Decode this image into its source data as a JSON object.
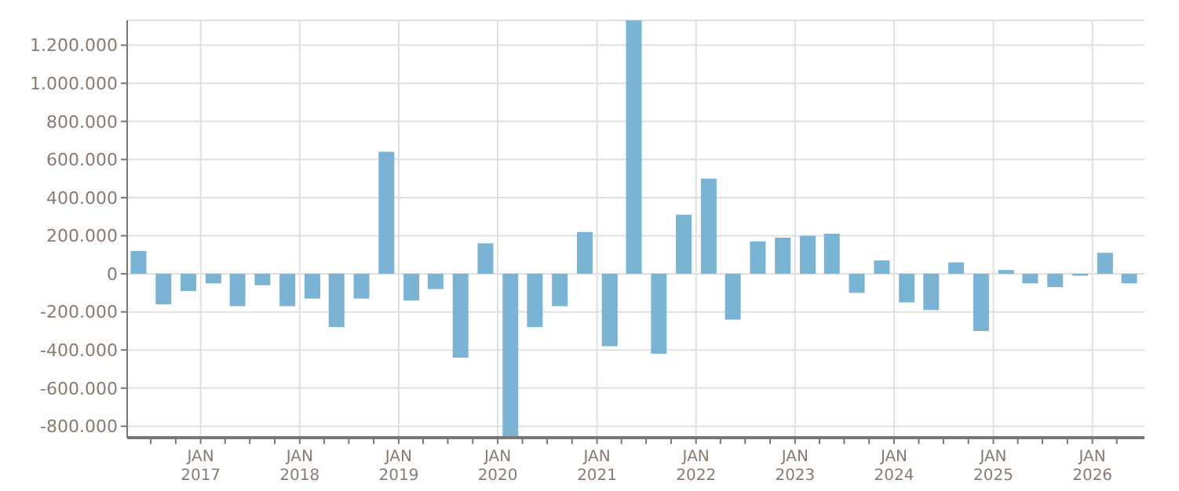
{
  "chart_data": {
    "type": "bar",
    "x": [
      "2016-05-15",
      "2016-08-15",
      "2016-11-15",
      "2017-02-15",
      "2017-05-15",
      "2017-08-15",
      "2017-11-15",
      "2018-02-15",
      "2018-05-15",
      "2018-08-15",
      "2018-11-15",
      "2019-02-15",
      "2019-05-15",
      "2019-08-15",
      "2019-11-15",
      "2020-02-15",
      "2020-05-15",
      "2020-08-15",
      "2020-11-15",
      "2021-02-15",
      "2021-05-15",
      "2021-08-15",
      "2021-11-15",
      "2022-02-15",
      "2022-05-15",
      "2022-08-15",
      "2022-11-15",
      "2023-02-15",
      "2023-05-15",
      "2023-08-15",
      "2023-11-15",
      "2024-02-15",
      "2024-05-15",
      "2024-08-15",
      "2024-11-15",
      "2025-02-15",
      "2025-05-15",
      "2025-08-15",
      "2025-11-15",
      "2026-02-15",
      "2026-05-15"
    ],
    "values": [
      120000,
      -160000,
      -90000,
      -50000,
      -170000,
      -60000,
      -170000,
      -130000,
      -280000,
      -130000,
      640000,
      -140000,
      -80000,
      -440000,
      160000,
      -860000,
      -280000,
      -170000,
      220000,
      -380000,
      1330000,
      -420000,
      310000,
      500000,
      -240000,
      170000,
      190000,
      200000,
      210000,
      -100000,
      70000,
      -150000,
      -190000,
      60000,
      -300000,
      20000,
      -50000,
      -70000,
      -10000,
      110000,
      -50000
    ],
    "color": "#7ab3d4",
    "xlim": [
      "2016-04-05",
      "2026-07-12"
    ],
    "xticks": [
      {
        "value": "2016-07-01",
        "label": null
      },
      {
        "value": "2016-10-01",
        "label": null
      },
      {
        "value": "2017-01-01",
        "label": "JAN 2017"
      },
      {
        "value": "2017-04-01",
        "label": null
      },
      {
        "value": "2017-07-01",
        "label": null
      },
      {
        "value": "2017-10-01",
        "label": null
      },
      {
        "value": "2018-01-01",
        "label": "JAN 2018"
      },
      {
        "value": "2018-04-01",
        "label": null
      },
      {
        "value": "2018-07-01",
        "label": null
      },
      {
        "value": "2018-10-01",
        "label": null
      },
      {
        "value": "2019-01-01",
        "label": "JAN 2019"
      },
      {
        "value": "2019-04-01",
        "label": null
      },
      {
        "value": "2019-07-01",
        "label": null
      },
      {
        "value": "2019-10-01",
        "label": null
      },
      {
        "value": "2020-01-01",
        "label": "JAN 2020"
      },
      {
        "value": "2020-04-01",
        "label": null
      },
      {
        "value": "2020-07-01",
        "label": null
      },
      {
        "value": "2020-10-01",
        "label": null
      },
      {
        "value": "2021-01-01",
        "label": "JAN 2021"
      },
      {
        "value": "2021-04-01",
        "label": null
      },
      {
        "value": "2021-07-01",
        "label": null
      },
      {
        "value": "2021-10-01",
        "label": null
      },
      {
        "value": "2022-01-01",
        "label": "JAN 2022"
      },
      {
        "value": "2022-04-01",
        "label": null
      },
      {
        "value": "2022-07-01",
        "label": null
      },
      {
        "value": "2022-10-01",
        "label": null
      },
      {
        "value": "2023-01-01",
        "label": "JAN 2023"
      },
      {
        "value": "2023-04-01",
        "label": null
      },
      {
        "value": "2023-07-01",
        "label": null
      },
      {
        "value": "2023-10-01",
        "label": null
      },
      {
        "value": "2024-01-01",
        "label": "JAN 2024"
      },
      {
        "value": "2024-04-01",
        "label": null
      },
      {
        "value": "2024-07-01",
        "label": null
      },
      {
        "value": "2024-10-01",
        "label": null
      },
      {
        "value": "2025-01-01",
        "label": "JAN 2025"
      },
      {
        "value": "2025-04-01",
        "label": null
      },
      {
        "value": "2025-07-01",
        "label": null
      },
      {
        "value": "2025-10-01",
        "label": null
      },
      {
        "value": "2026-01-01",
        "label": "JAN 2026"
      },
      {
        "value": "2026-04-01",
        "label": null
      }
    ],
    "ylim": [
      -860000,
      1330000
    ],
    "yticks": [
      {
        "value": -800000,
        "label": "-800.000"
      },
      {
        "value": -600000,
        "label": "-600.000"
      },
      {
        "value": -400000,
        "label": "-400.000"
      },
      {
        "value": -200000,
        "label": "-200.000"
      },
      {
        "value": 0,
        "label": "0"
      },
      {
        "value": 200000,
        "label": "200.000"
      },
      {
        "value": 400000,
        "label": "400.000"
      },
      {
        "value": 600000,
        "label": "600.000"
      },
      {
        "value": 800000,
        "label": "800.000"
      },
      {
        "value": 1000000,
        "label": "1.000.000"
      },
      {
        "value": 1200000,
        "label": "1.200.000"
      }
    ],
    "grid": true
  }
}
